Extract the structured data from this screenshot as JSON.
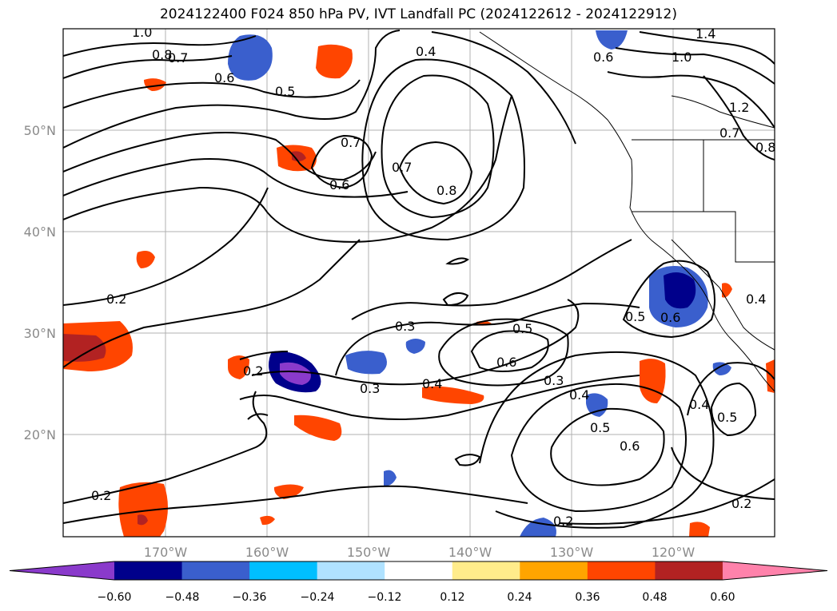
{
  "title": "2024122400 F024 850 hPa PV, IVT Landfall PC (2024122612 - 2024122912)",
  "map": {
    "lon_labels": [
      "170°W",
      "160°W",
      "150°W",
      "140°W",
      "130°W",
      "120°W"
    ],
    "lat_labels": [
      "50°N",
      "40°N",
      "30°N",
      "20°N"
    ],
    "contour_labels": [
      "1.0",
      "0.8",
      "0.7",
      "0.6",
      "0.5",
      "0.4",
      "0.7",
      "0.6",
      "0.7",
      "0.8",
      "0.2",
      "0.3",
      "0.5",
      "0.6",
      "0.2",
      "0.3",
      "0.4",
      "0.3",
      "0.4",
      "0.5",
      "0.6",
      "0.5",
      "0.6",
      "0.4",
      "0.5",
      "0.2",
      "0.2",
      "0.2",
      "1.4",
      "1.0",
      "0.6",
      "1.2",
      "0.8",
      "0.7",
      "0.4"
    ],
    "shading_colors": [
      "#8a3acb",
      "#00008b",
      "#3a5fcd",
      "#00bfff",
      "#b0e2ff",
      "#ffffff",
      "#ffec8b",
      "#ffa500",
      "#ff4500",
      "#b22222",
      "#ff82ab"
    ]
  },
  "colorbar": {
    "tick_labels": [
      "−0.60",
      "−0.48",
      "−0.36",
      "−0.24",
      "−0.12",
      "0.12",
      "0.24",
      "0.36",
      "0.48",
      "0.60"
    ],
    "colors": [
      "#8a3acb",
      "#00008b",
      "#3a5fcd",
      "#00bfff",
      "#b0e2ff",
      "#ffffff",
      "#ffec8b",
      "#ffa500",
      "#ff4500",
      "#b22222",
      "#ff82ab"
    ]
  }
}
